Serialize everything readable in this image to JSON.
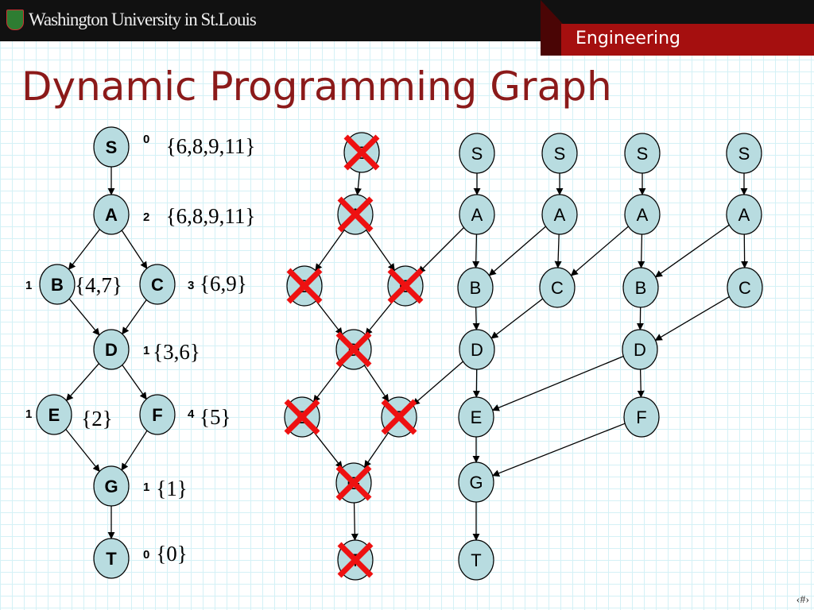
{
  "header": {
    "university": "Washington University in St.Louis",
    "school": "Engineering"
  },
  "title": "Dynamic Programming Graph",
  "footer": "‹#›",
  "colors": {
    "node_fill": "#b8dce0",
    "cross": "#ee1111",
    "title": "#8b1a1a",
    "brand_red": "#a50f0f"
  },
  "left_graph": {
    "nodes": [
      {
        "id": "S",
        "label": "S",
        "weight": "0",
        "set": "{6,8,9,11}"
      },
      {
        "id": "A",
        "label": "A",
        "weight": "2",
        "set": "{6,8,9,11}"
      },
      {
        "id": "B",
        "label": "B",
        "weight": "1",
        "set": "{4,7}"
      },
      {
        "id": "C",
        "label": "C",
        "weight": "3",
        "set": "{6,9}"
      },
      {
        "id": "D",
        "label": "D",
        "weight": "1",
        "set": "{3,6}"
      },
      {
        "id": "E",
        "label": "E",
        "weight": "1",
        "set": "{2}"
      },
      {
        "id": "F",
        "label": "F",
        "weight": "4",
        "set": "{5}"
      },
      {
        "id": "G",
        "label": "G",
        "weight": "1",
        "set": "{1}"
      },
      {
        "id": "T",
        "label": "T",
        "weight": "0",
        "set": "{0}"
      }
    ],
    "edges": [
      [
        "S",
        "A"
      ],
      [
        "A",
        "B"
      ],
      [
        "A",
        "C"
      ],
      [
        "B",
        "D"
      ],
      [
        "C",
        "D"
      ],
      [
        "D",
        "E"
      ],
      [
        "D",
        "F"
      ],
      [
        "E",
        "G"
      ],
      [
        "F",
        "G"
      ],
      [
        "G",
        "T"
      ]
    ]
  },
  "unrolled_graph": {
    "nodes": [
      {
        "id": "mS",
        "label": "S",
        "crossed": true
      },
      {
        "id": "mA",
        "label": "A",
        "crossed": true
      },
      {
        "id": "mB",
        "label": "B",
        "crossed": true
      },
      {
        "id": "mC",
        "label": "C",
        "crossed": true
      },
      {
        "id": "mD",
        "label": "D",
        "crossed": true
      },
      {
        "id": "mE",
        "label": "E",
        "crossed": true
      },
      {
        "id": "mF",
        "label": "F",
        "crossed": true
      },
      {
        "id": "mG",
        "label": "G",
        "crossed": true
      },
      {
        "id": "mT",
        "label": "T",
        "crossed": true
      },
      {
        "id": "c2S",
        "label": "S"
      },
      {
        "id": "c2A",
        "label": "A"
      },
      {
        "id": "c2B",
        "label": "B"
      },
      {
        "id": "c2D",
        "label": "D"
      },
      {
        "id": "c2E",
        "label": "E"
      },
      {
        "id": "c2G",
        "label": "G"
      },
      {
        "id": "c2T",
        "label": "T"
      },
      {
        "id": "c3S",
        "label": "S"
      },
      {
        "id": "c3A",
        "label": "A"
      },
      {
        "id": "c3C",
        "label": "C"
      },
      {
        "id": "c4S",
        "label": "S"
      },
      {
        "id": "c4A",
        "label": "A"
      },
      {
        "id": "c4B",
        "label": "B"
      },
      {
        "id": "c4D",
        "label": "D"
      },
      {
        "id": "c4F",
        "label": "F"
      },
      {
        "id": "c5S",
        "label": "S"
      },
      {
        "id": "c5A",
        "label": "A"
      },
      {
        "id": "c5C",
        "label": "C"
      }
    ],
    "edges": [
      [
        "mS",
        "mA"
      ],
      [
        "mA",
        "mB"
      ],
      [
        "mA",
        "mC"
      ],
      [
        "mB",
        "mD"
      ],
      [
        "mC",
        "mD"
      ],
      [
        "mD",
        "mE"
      ],
      [
        "mD",
        "mF"
      ],
      [
        "mE",
        "mG"
      ],
      [
        "mF",
        "mG"
      ],
      [
        "mG",
        "mT"
      ],
      [
        "c2S",
        "c2A"
      ],
      [
        "c2A",
        "c2B"
      ],
      [
        "c2B",
        "c2D"
      ],
      [
        "c2D",
        "c2E"
      ],
      [
        "c2E",
        "c2G"
      ],
      [
        "c2G",
        "c2T"
      ],
      [
        "c2A",
        "mC"
      ],
      [
        "c2D",
        "mF"
      ],
      [
        "c3S",
        "c3A"
      ],
      [
        "c3A",
        "c3C"
      ],
      [
        "c3A",
        "c2B"
      ],
      [
        "c3C",
        "c2D"
      ],
      [
        "c4S",
        "c4A"
      ],
      [
        "c4A",
        "c4B"
      ],
      [
        "c4B",
        "c4D"
      ],
      [
        "c4D",
        "c4F"
      ],
      [
        "c4A",
        "c3C"
      ],
      [
        "c4D",
        "c2E"
      ],
      [
        "c4F",
        "c2G"
      ],
      [
        "c5S",
        "c5A"
      ],
      [
        "c5A",
        "c5C"
      ],
      [
        "c5A",
        "c4B"
      ],
      [
        "c5C",
        "c4D"
      ]
    ]
  }
}
